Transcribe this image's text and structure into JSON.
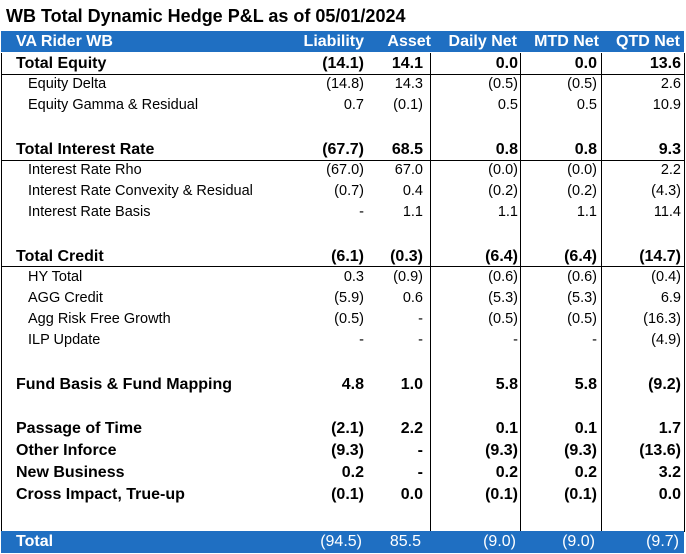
{
  "title": "WB Total Dynamic Hedge P&L as of 05/01/2024",
  "header": {
    "label": "VA Rider WB",
    "columns": [
      "Liability",
      "Asset",
      "Daily Net",
      "MTD Net",
      "QTD Net"
    ]
  },
  "rows": [
    {
      "label": "Total Equity",
      "level": "total",
      "values": [
        "(14.1)",
        "14.1",
        "0.0",
        "0.0",
        "13.6"
      ]
    },
    {
      "label": "Equity Delta",
      "level": "sub",
      "values": [
        "(14.8)",
        "14.3",
        "(0.5)",
        "(0.5)",
        "2.6"
      ]
    },
    {
      "label": "Equity Gamma & Residual",
      "level": "sub",
      "values": [
        "0.7",
        "(0.1)",
        "0.5",
        "0.5",
        "10.9"
      ]
    },
    {
      "label": "Total Interest Rate",
      "level": "total",
      "values": [
        "(67.7)",
        "68.5",
        "0.8",
        "0.8",
        "9.3"
      ]
    },
    {
      "label": "Interest Rate Rho",
      "level": "sub",
      "values": [
        "(67.0)",
        "67.0",
        "(0.0)",
        "(0.0)",
        "2.2"
      ]
    },
    {
      "label": "Interest Rate Convexity & Residual",
      "level": "sub",
      "values": [
        "(0.7)",
        "0.4",
        "(0.2)",
        "(0.2)",
        "(4.3)"
      ]
    },
    {
      "label": "Interest Rate Basis",
      "level": "sub",
      "values": [
        "-",
        "1.1",
        "1.1",
        "1.1",
        "11.4"
      ]
    },
    {
      "label": "Total Credit",
      "level": "total",
      "values": [
        "(6.1)",
        "(0.3)",
        "(6.4)",
        "(6.4)",
        "(14.7)"
      ]
    },
    {
      "label": "HY Total",
      "level": "sub",
      "values": [
        "0.3",
        "(0.9)",
        "(0.6)",
        "(0.6)",
        "(0.4)"
      ]
    },
    {
      "label": "AGG Credit",
      "level": "sub",
      "values": [
        "(5.9)",
        "0.6",
        "(5.3)",
        "(5.3)",
        "6.9"
      ]
    },
    {
      "label": "Agg Risk Free Growth",
      "level": "sub",
      "values": [
        "(0.5)",
        "-",
        "(0.5)",
        "(0.5)",
        "(16.3)"
      ]
    },
    {
      "label": "ILP Update",
      "level": "sub",
      "values": [
        "-",
        "-",
        "-",
        "-",
        "(4.9)"
      ]
    },
    {
      "label": "Fund Basis & Fund Mapping",
      "level": "total",
      "values": [
        "4.8",
        "1.0",
        "5.8",
        "5.8",
        "(9.2)"
      ]
    },
    {
      "label": "Passage of Time",
      "level": "total",
      "values": [
        "(2.1)",
        "2.2",
        "0.1",
        "0.1",
        "1.7"
      ]
    },
    {
      "label": "Other Inforce",
      "level": "total",
      "values": [
        "(9.3)",
        "-",
        "(9.3)",
        "(9.3)",
        "(13.6)"
      ]
    },
    {
      "label": "New Business",
      "level": "total",
      "values": [
        "0.2",
        "-",
        "0.2",
        "0.2",
        "3.2"
      ]
    },
    {
      "label": "Cross Impact, True-up",
      "level": "total",
      "values": [
        "(0.1)",
        "0.0",
        "(0.1)",
        "(0.1)",
        "0.0"
      ]
    }
  ],
  "total": {
    "label": "Total",
    "values": [
      "(94.5)",
      "85.5",
      "(9.0)",
      "(9.0)",
      "(9.7)"
    ]
  },
  "colors": {
    "header_bg": "#1f6fc2",
    "header_text": "#ffffff"
  }
}
